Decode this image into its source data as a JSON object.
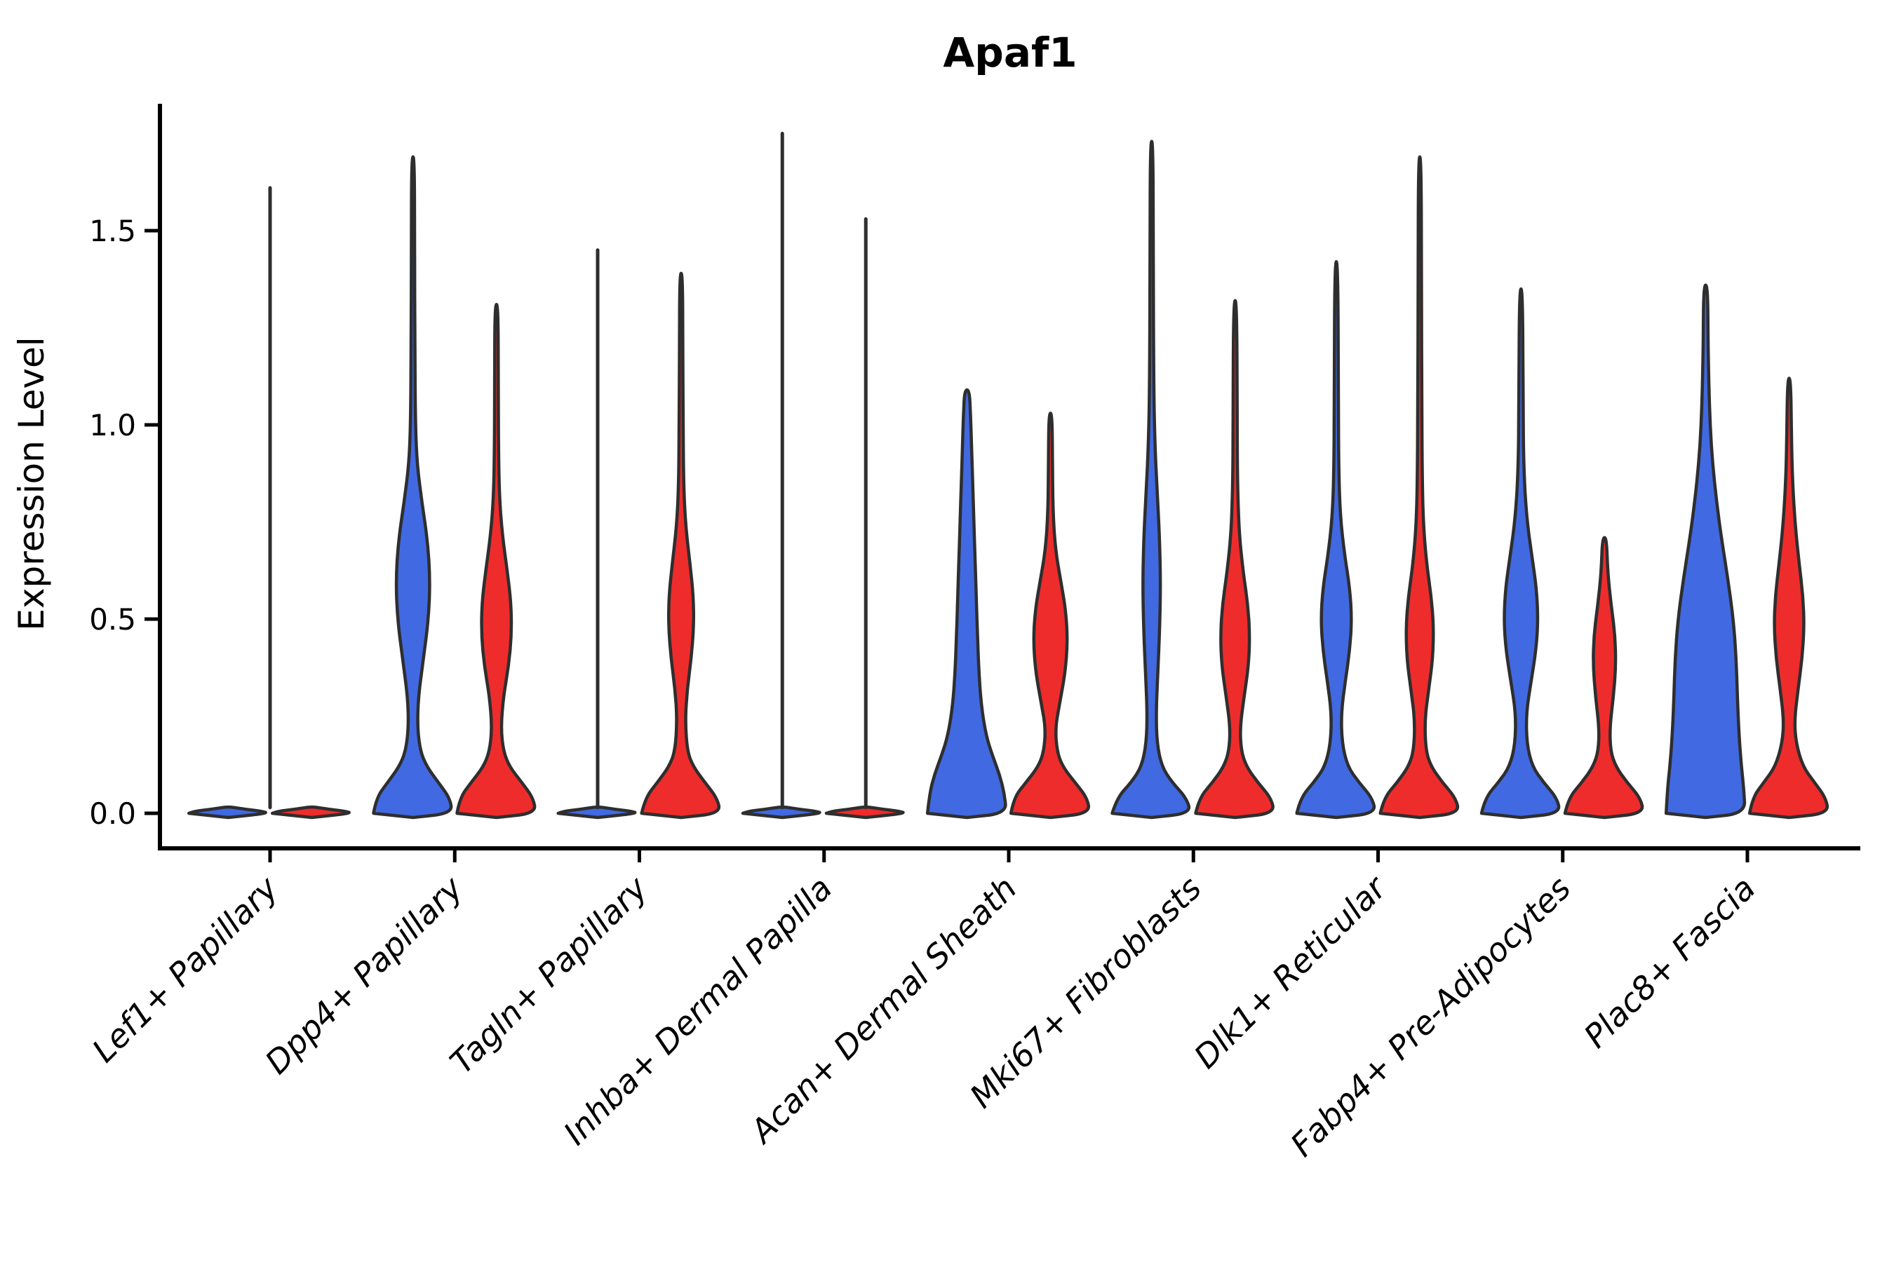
{
  "chart_data": {
    "type": "violin",
    "title": "Apaf1",
    "xlabel": "",
    "ylabel": "Expression Level",
    "ylim": [
      -0.09,
      1.84
    ],
    "yticks": [
      0.0,
      0.5,
      1.0,
      1.5
    ],
    "ytick_labels": [
      "0.0",
      "0.5",
      "1.0",
      "1.5"
    ],
    "x_tick_rotation": 45,
    "grid": false,
    "legend_position": "none",
    "groups": [
      "blue",
      "red"
    ],
    "group_colors": {
      "blue": "#4169E1",
      "red": "#EE2C2C"
    },
    "outline_color": "#2e2e2e",
    "spine_color": "#000000",
    "categories": [
      "Lef1+ Papillary",
      "Dpp4+ Papillary",
      "Tagln+ Papillary",
      "Inhba+ Dermal Papilla",
      "Acan+ Dermal Sheath",
      "Mki67+ Fibroblasts",
      "Dlk1+ Reticular",
      "Fabp4+ Pre-Adipocytes",
      "Plac8+ Fascia"
    ],
    "violins": [
      {
        "category": "Lef1+ Papillary",
        "blue": {
          "shape": "flat",
          "max": 0.02
        },
        "red": {
          "shape": "flat",
          "max": 0.02
        },
        "spikes": [
          {
            "position": "center",
            "top": 1.61
          }
        ]
      },
      {
        "category": "Dpp4+ Papillary",
        "blue": {
          "shape": "dpp4_blue",
          "max": 1.69
        },
        "red": {
          "shape": "dpp4_red",
          "max": 1.31
        },
        "spikes": []
      },
      {
        "category": "Tagln+ Papillary",
        "blue": {
          "shape": "flat",
          "max": 0.02
        },
        "red": {
          "shape": "tagln_red",
          "max": 1.39
        },
        "spikes": [
          {
            "position": "blue",
            "top": 1.45
          }
        ]
      },
      {
        "category": "Inhba+ Dermal Papilla",
        "blue": {
          "shape": "flat",
          "max": 0.02
        },
        "red": {
          "shape": "flat",
          "max": 0.02
        },
        "spikes": [
          {
            "position": "blue",
            "top": 1.75
          },
          {
            "position": "red",
            "top": 1.53
          }
        ]
      },
      {
        "category": "Acan+ Dermal Sheath",
        "blue": {
          "shape": "acan_blue",
          "max": 1.09
        },
        "red": {
          "shape": "acan_red",
          "max": 1.03
        },
        "spikes": []
      },
      {
        "category": "Mki67+ Fibroblasts",
        "blue": {
          "shape": "mki67_blue",
          "max": 1.73
        },
        "red": {
          "shape": "mki67_red",
          "max": 1.32
        },
        "spikes": []
      },
      {
        "category": "Dlk1+ Reticular",
        "blue": {
          "shape": "dlk1_blue",
          "max": 1.42
        },
        "red": {
          "shape": "dlk1_red",
          "max": 1.69
        },
        "spikes": []
      },
      {
        "category": "Fabp4+ Pre-Adipocytes",
        "blue": {
          "shape": "fabp4_blue",
          "max": 1.35
        },
        "red": {
          "shape": "fabp4_red",
          "max": 0.71
        },
        "spikes": []
      },
      {
        "category": "Plac8+ Fascia",
        "blue": {
          "shape": "plac8_blue",
          "max": 1.36
        },
        "red": {
          "shape": "plac8_red",
          "max": 1.12
        },
        "spikes": []
      }
    ],
    "profiles": {
      "flat": [
        [
          0.0,
          0.97
        ],
        [
          0.005,
          0.85
        ],
        [
          0.01,
          0.45
        ],
        [
          0.016,
          0.08
        ]
      ],
      "dpp4_blue": [
        [
          0,
          0.97
        ],
        [
          0.04,
          0.9
        ],
        [
          0.08,
          0.62
        ],
        [
          0.12,
          0.34
        ],
        [
          0.16,
          0.18
        ],
        [
          0.22,
          0.11
        ],
        [
          0.3,
          0.13
        ],
        [
          0.4,
          0.26
        ],
        [
          0.5,
          0.38
        ],
        [
          0.6,
          0.42
        ],
        [
          0.7,
          0.36
        ],
        [
          0.8,
          0.22
        ],
        [
          0.9,
          0.1
        ],
        [
          1.0,
          0.06
        ],
        [
          1.2,
          0.045
        ],
        [
          1.45,
          0.04
        ],
        [
          1.69,
          0.035
        ]
      ],
      "dpp4_red": [
        [
          0,
          0.97
        ],
        [
          0.04,
          0.9
        ],
        [
          0.08,
          0.62
        ],
        [
          0.12,
          0.32
        ],
        [
          0.16,
          0.17
        ],
        [
          0.22,
          0.11
        ],
        [
          0.3,
          0.17
        ],
        [
          0.38,
          0.3
        ],
        [
          0.46,
          0.37
        ],
        [
          0.54,
          0.36
        ],
        [
          0.62,
          0.27
        ],
        [
          0.72,
          0.14
        ],
        [
          0.82,
          0.07
        ],
        [
          0.95,
          0.05
        ],
        [
          1.1,
          0.045
        ],
        [
          1.31,
          0.04
        ]
      ],
      "tagln_red": [
        [
          0,
          0.97
        ],
        [
          0.04,
          0.88
        ],
        [
          0.08,
          0.58
        ],
        [
          0.12,
          0.3
        ],
        [
          0.16,
          0.15
        ],
        [
          0.24,
          0.1
        ],
        [
          0.32,
          0.15
        ],
        [
          0.4,
          0.25
        ],
        [
          0.48,
          0.31
        ],
        [
          0.56,
          0.3
        ],
        [
          0.64,
          0.22
        ],
        [
          0.74,
          0.11
        ],
        [
          0.85,
          0.06
        ],
        [
          1.0,
          0.05
        ],
        [
          1.2,
          0.04
        ],
        [
          1.39,
          0.035
        ]
      ],
      "acan_blue": [
        [
          0,
          0.97
        ],
        [
          0.05,
          0.92
        ],
        [
          0.1,
          0.8
        ],
        [
          0.15,
          0.62
        ],
        [
          0.2,
          0.47
        ],
        [
          0.27,
          0.36
        ],
        [
          0.35,
          0.3
        ],
        [
          0.45,
          0.26
        ],
        [
          0.55,
          0.23
        ],
        [
          0.65,
          0.2
        ],
        [
          0.75,
          0.17
        ],
        [
          0.85,
          0.14
        ],
        [
          0.95,
          0.11
        ],
        [
          1.02,
          0.09
        ],
        [
          1.09,
          0.06
        ]
      ],
      "acan_red": [
        [
          0,
          0.97
        ],
        [
          0.04,
          0.9
        ],
        [
          0.08,
          0.6
        ],
        [
          0.12,
          0.3
        ],
        [
          0.16,
          0.16
        ],
        [
          0.22,
          0.12
        ],
        [
          0.28,
          0.22
        ],
        [
          0.36,
          0.36
        ],
        [
          0.44,
          0.42
        ],
        [
          0.52,
          0.38
        ],
        [
          0.6,
          0.25
        ],
        [
          0.68,
          0.12
        ],
        [
          0.78,
          0.06
        ],
        [
          0.9,
          0.05
        ],
        [
          1.03,
          0.04
        ]
      ],
      "mki67_blue": [
        [
          0,
          0.97
        ],
        [
          0.04,
          0.85
        ],
        [
          0.08,
          0.5
        ],
        [
          0.12,
          0.25
        ],
        [
          0.18,
          0.13
        ],
        [
          0.26,
          0.11
        ],
        [
          0.36,
          0.15
        ],
        [
          0.48,
          0.2
        ],
        [
          0.6,
          0.22
        ],
        [
          0.72,
          0.19
        ],
        [
          0.84,
          0.13
        ],
        [
          0.95,
          0.08
        ],
        [
          1.1,
          0.05
        ],
        [
          1.4,
          0.04
        ],
        [
          1.73,
          0.035
        ]
      ],
      "mki67_red": [
        [
          0,
          0.97
        ],
        [
          0.04,
          0.88
        ],
        [
          0.08,
          0.55
        ],
        [
          0.12,
          0.28
        ],
        [
          0.16,
          0.15
        ],
        [
          0.22,
          0.12
        ],
        [
          0.3,
          0.22
        ],
        [
          0.38,
          0.33
        ],
        [
          0.46,
          0.36
        ],
        [
          0.54,
          0.31
        ],
        [
          0.62,
          0.2
        ],
        [
          0.72,
          0.1
        ],
        [
          0.84,
          0.06
        ],
        [
          1.0,
          0.05
        ],
        [
          1.32,
          0.04
        ]
      ],
      "dlk1_blue": [
        [
          0,
          0.97
        ],
        [
          0.04,
          0.88
        ],
        [
          0.08,
          0.55
        ],
        [
          0.12,
          0.28
        ],
        [
          0.18,
          0.14
        ],
        [
          0.26,
          0.12
        ],
        [
          0.34,
          0.22
        ],
        [
          0.42,
          0.33
        ],
        [
          0.5,
          0.38
        ],
        [
          0.58,
          0.33
        ],
        [
          0.66,
          0.21
        ],
        [
          0.76,
          0.1
        ],
        [
          0.88,
          0.06
        ],
        [
          1.05,
          0.05
        ],
        [
          1.42,
          0.04
        ]
      ],
      "dlk1_red": [
        [
          0,
          0.97
        ],
        [
          0.04,
          0.88
        ],
        [
          0.08,
          0.55
        ],
        [
          0.12,
          0.28
        ],
        [
          0.16,
          0.15
        ],
        [
          0.24,
          0.12
        ],
        [
          0.32,
          0.22
        ],
        [
          0.4,
          0.32
        ],
        [
          0.48,
          0.34
        ],
        [
          0.56,
          0.28
        ],
        [
          0.64,
          0.17
        ],
        [
          0.74,
          0.09
        ],
        [
          0.86,
          0.06
        ],
        [
          1.05,
          0.05
        ],
        [
          1.35,
          0.04
        ],
        [
          1.69,
          0.035
        ]
      ],
      "fabp4_blue": [
        [
          0,
          0.97
        ],
        [
          0.04,
          0.88
        ],
        [
          0.08,
          0.55
        ],
        [
          0.12,
          0.28
        ],
        [
          0.18,
          0.14
        ],
        [
          0.26,
          0.13
        ],
        [
          0.34,
          0.25
        ],
        [
          0.42,
          0.37
        ],
        [
          0.5,
          0.42
        ],
        [
          0.58,
          0.38
        ],
        [
          0.66,
          0.27
        ],
        [
          0.76,
          0.14
        ],
        [
          0.88,
          0.07
        ],
        [
          1.05,
          0.05
        ],
        [
          1.35,
          0.04
        ]
      ],
      "fabp4_red": [
        [
          0,
          0.97
        ],
        [
          0.04,
          0.88
        ],
        [
          0.08,
          0.55
        ],
        [
          0.12,
          0.28
        ],
        [
          0.16,
          0.15
        ],
        [
          0.22,
          0.13
        ],
        [
          0.3,
          0.22
        ],
        [
          0.38,
          0.28
        ],
        [
          0.46,
          0.26
        ],
        [
          0.54,
          0.16
        ],
        [
          0.62,
          0.08
        ],
        [
          0.71,
          0.05
        ]
      ],
      "plac8_blue": [
        [
          0,
          0.97
        ],
        [
          0.06,
          0.94
        ],
        [
          0.12,
          0.88
        ],
        [
          0.2,
          0.82
        ],
        [
          0.3,
          0.78
        ],
        [
          0.4,
          0.75
        ],
        [
          0.5,
          0.68
        ],
        [
          0.6,
          0.55
        ],
        [
          0.7,
          0.4
        ],
        [
          0.8,
          0.27
        ],
        [
          0.9,
          0.17
        ],
        [
          1.0,
          0.11
        ],
        [
          1.1,
          0.08
        ],
        [
          1.2,
          0.06
        ],
        [
          1.36,
          0.05
        ]
      ],
      "plac8_red": [
        [
          0,
          0.97
        ],
        [
          0.04,
          0.9
        ],
        [
          0.08,
          0.62
        ],
        [
          0.12,
          0.34
        ],
        [
          0.18,
          0.17
        ],
        [
          0.24,
          0.13
        ],
        [
          0.32,
          0.22
        ],
        [
          0.4,
          0.32
        ],
        [
          0.48,
          0.37
        ],
        [
          0.56,
          0.34
        ],
        [
          0.64,
          0.25
        ],
        [
          0.74,
          0.15
        ],
        [
          0.84,
          0.09
        ],
        [
          0.95,
          0.06
        ],
        [
          1.12,
          0.04
        ]
      ]
    }
  }
}
